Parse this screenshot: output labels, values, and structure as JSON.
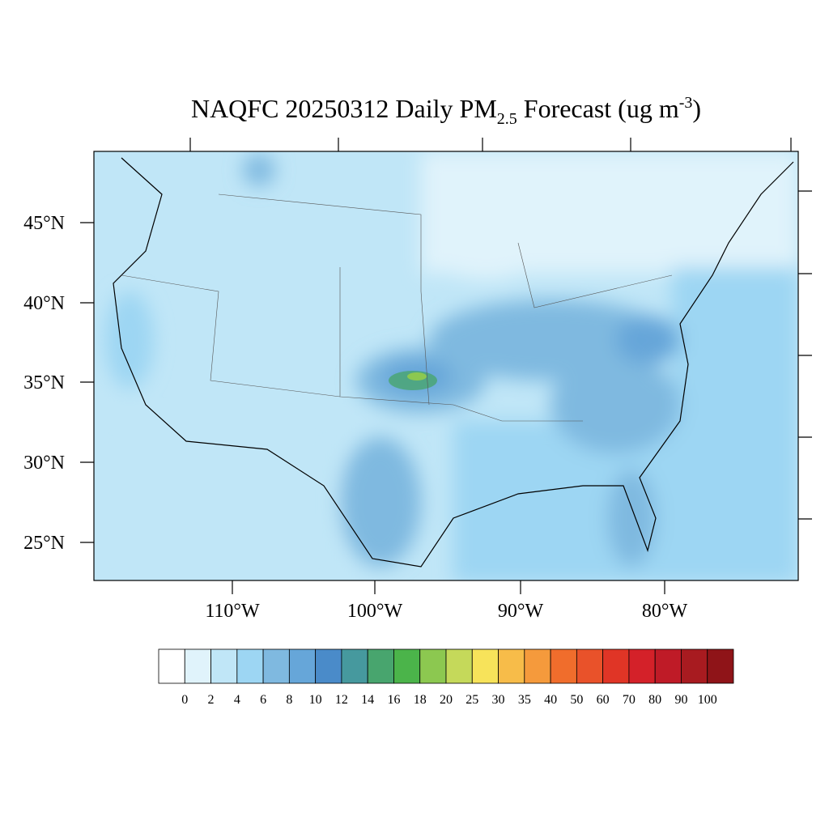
{
  "title": {
    "main": "NAQFC 20250312 Daily PM",
    "subscript": "2.5",
    "rest": " Forecast (ug m",
    "superscript": "-3",
    "close": ")"
  },
  "lat_labels": [
    "45°N",
    "40°N",
    "35°N",
    "30°N",
    "25°N"
  ],
  "lon_labels": [
    "110°W",
    "100°W",
    "90°W",
    "80°W"
  ],
  "colorbar": {
    "levels": [
      0,
      2,
      4,
      6,
      8,
      10,
      12,
      14,
      16,
      18,
      20,
      25,
      30,
      35,
      40,
      50,
      60,
      70,
      80,
      90,
      100
    ],
    "colors": [
      "#ffffff",
      "#e0f3fb",
      "#c0e6f7",
      "#9dd6f3",
      "#7fb9e0",
      "#66a6d9",
      "#4a8bc9",
      "#46999e",
      "#48a56e",
      "#4bb44a",
      "#8cc850",
      "#c5d95a",
      "#f7e35a",
      "#f7bc49",
      "#f59a3c",
      "#f06d2c",
      "#e9522a",
      "#e03526",
      "#d42129",
      "#bf1b27",
      "#a81b20",
      "#8f1418"
    ]
  }
}
